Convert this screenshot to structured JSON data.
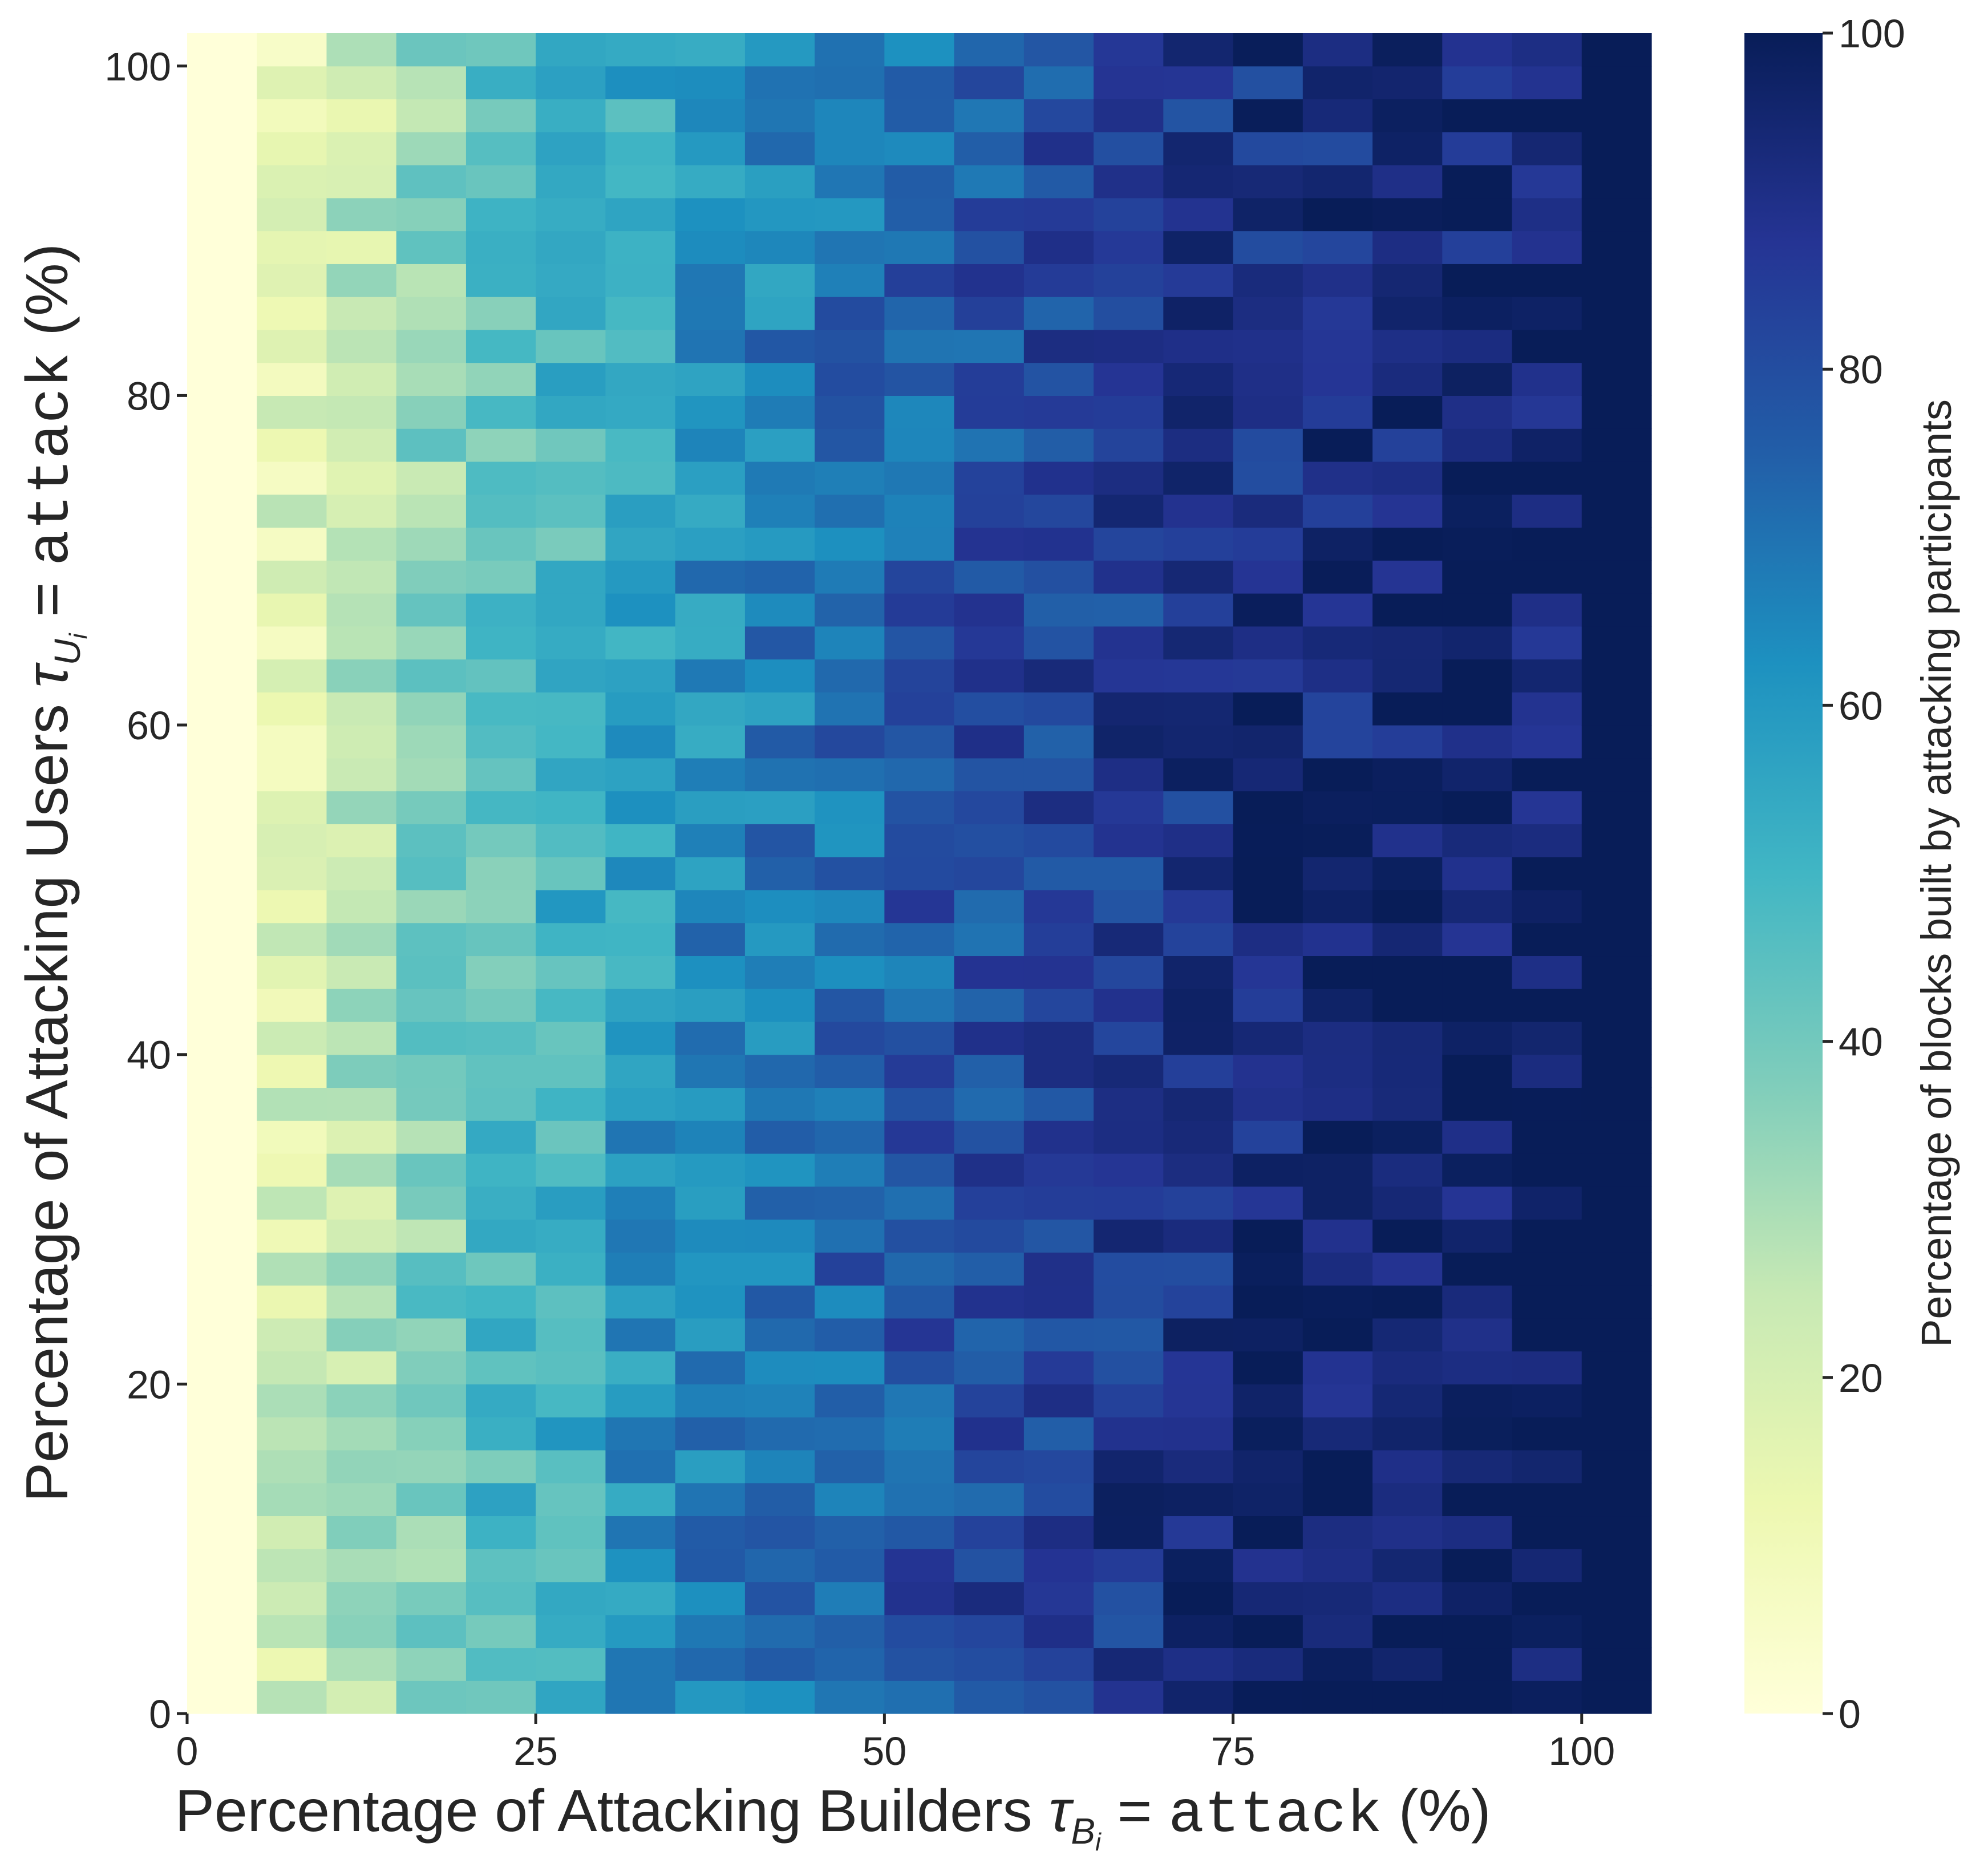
{
  "chart_data": {
    "type": "heatmap",
    "colormap": "YlGnBu",
    "xlabel": {
      "prefix": "Percentage of Attacking Builders ",
      "var": "τ",
      "sub": "B",
      "subsub": "i",
      "eq": " = ",
      "code": "attack",
      "suffix": " (%)"
    },
    "ylabel": {
      "prefix": "Percentage of Attacking Users ",
      "var": "τ",
      "sub": "U",
      "subsub": "i",
      "eq": " = ",
      "code": "attack",
      "suffix": " (%)"
    },
    "colorbar_label": "Percentage of blocks built by attacking participants",
    "x_ticks": [
      "0",
      "25",
      "50",
      "75",
      "100"
    ],
    "y_ticks": [
      "0",
      "20",
      "40",
      "60",
      "80",
      "100"
    ],
    "colorbar_ticks": [
      "0",
      "20",
      "40",
      "60",
      "80",
      "100"
    ],
    "x_range": [
      0,
      105
    ],
    "y_range": [
      0,
      102
    ],
    "value_range": [
      0,
      100
    ],
    "x_bin_width": 5,
    "y_bin_width": 2,
    "n_cols": 21,
    "n_rows": 51,
    "col_center_values": [
      0,
      18,
      27,
      36,
      45,
      50,
      58,
      63,
      68,
      72,
      76,
      80,
      83,
      86,
      89,
      92,
      94,
      96,
      97,
      98,
      100
    ]
  }
}
